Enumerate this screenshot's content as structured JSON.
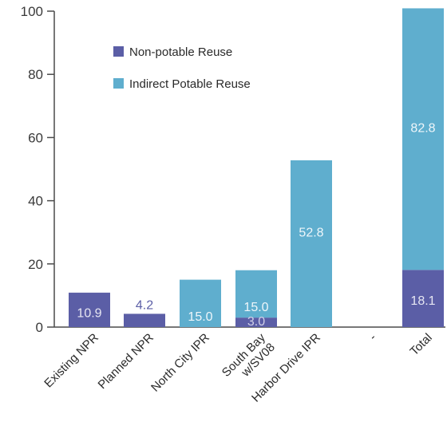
{
  "chart_data": {
    "type": "bar",
    "stacked": true,
    "categories": [
      "Existing NPR",
      "Planned NPR",
      "North City IPR",
      "South Bay w/SV08",
      "Harbor Drive IPR",
      "-",
      "Total"
    ],
    "category_lines": [
      [
        "Existing NPR"
      ],
      [
        "Planned NPR"
      ],
      [
        "North City IPR"
      ],
      [
        "South Bay",
        "w/SV08"
      ],
      [
        "Harbor Drive IPR"
      ],
      [
        "-"
      ],
      [
        "Total"
      ]
    ],
    "series": [
      {
        "name": "Non-potable Reuse",
        "color": "#5b5ea6",
        "values": [
          10.9,
          4.2,
          0,
          3.0,
          0,
          0,
          18.1
        ],
        "labels": [
          "10.9",
          "4.2",
          "",
          "3.0",
          "",
          "",
          "18.1"
        ]
      },
      {
        "name": "Indirect Potable Reuse",
        "color": "#5faece",
        "values": [
          0,
          0,
          15.0,
          15.0,
          52.8,
          0,
          82.8
        ],
        "labels": [
          "",
          "",
          "15.0",
          "15.0",
          "52.8",
          "",
          "82.8"
        ]
      }
    ],
    "ylim": [
      0,
      100
    ],
    "yticks": [
      0,
      20,
      40,
      60,
      80,
      100
    ],
    "title": "",
    "xlabel": "",
    "ylabel": "",
    "legend_position": "upper-left inside plot",
    "grid": false
  }
}
